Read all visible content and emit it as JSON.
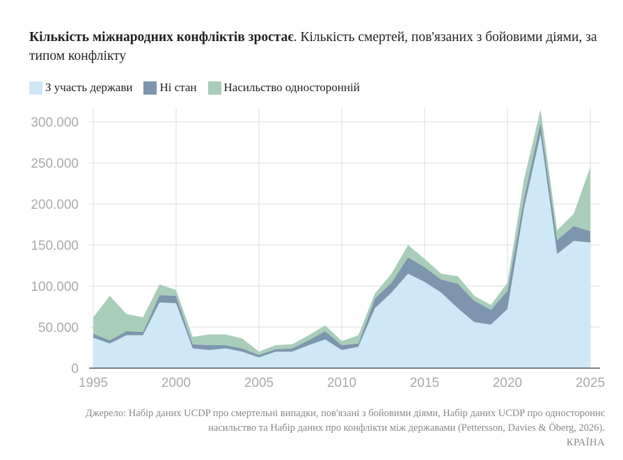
{
  "title": {
    "bold": "Кількість міжнародних конфліктів зростає",
    "rest": ". Кількість смертей, пов'язаних з бойовими діями, за типом конфлікту"
  },
  "source": "Джерело: Набір даних UCDP про смертельні випадки, пов'язані з бойовими діями, Набір даних UCDP про одностороннє насильство та Набір даних про конфлікти між державами (Pettersson, Davies & Öberg, 2026).",
  "brand": "КРАЇНА",
  "chart_data": {
    "type": "area",
    "stacked": true,
    "x": [
      1995,
      1996,
      1997,
      1998,
      1999,
      2000,
      2001,
      2002,
      2003,
      2004,
      2005,
      2006,
      2007,
      2008,
      2009,
      2010,
      2011,
      2012,
      2013,
      2014,
      2015,
      2016,
      2017,
      2018,
      2019,
      2020,
      2021,
      2022,
      2023,
      2024,
      2025
    ],
    "series": [
      {
        "name": "З участь держави",
        "color": "#cfe8f7",
        "values": [
          37000,
          30000,
          40000,
          40000,
          80000,
          79000,
          24000,
          22000,
          24000,
          20000,
          13000,
          20000,
          20000,
          28000,
          35000,
          22000,
          26000,
          73000,
          92000,
          115000,
          105000,
          92000,
          73000,
          56000,
          53000,
          72000,
          195000,
          285000,
          139000,
          155000,
          153000
        ]
      },
      {
        "name": "Ні стан",
        "color": "#7e96ad",
        "values": [
          5000,
          4000,
          5000,
          4000,
          9000,
          9000,
          5000,
          6000,
          4000,
          4000,
          3000,
          3000,
          4000,
          6000,
          10000,
          6000,
          4000,
          12000,
          12000,
          20000,
          18000,
          16000,
          30000,
          26000,
          18000,
          22000,
          12000,
          14000,
          17000,
          18000,
          14000
        ]
      },
      {
        "name": "Насильство односторонній",
        "color": "#a8ceb9",
        "values": [
          20000,
          54000,
          21000,
          18000,
          13000,
          7000,
          9000,
          13000,
          13000,
          12000,
          4000,
          5000,
          5000,
          6000,
          7000,
          5000,
          10000,
          6000,
          11000,
          15000,
          10000,
          7000,
          9000,
          6000,
          6000,
          10000,
          23000,
          16000,
          12000,
          15000,
          78000
        ]
      }
    ],
    "xlim": [
      1995,
      2025
    ],
    "ylim": [
      0,
      300000
    ],
    "x_ticks": [
      "1995",
      "2000",
      "2005",
      "2010",
      "2015",
      "2020",
      "2025"
    ],
    "x_tick_values": [
      1995,
      2000,
      2005,
      2010,
      2015,
      2020,
      2025
    ],
    "y_ticks": [
      "0",
      "50.000",
      "100.000",
      "150.000",
      "200.000",
      "250.000",
      "300.000"
    ],
    "y_tick_values": [
      0,
      50000,
      100000,
      150000,
      200000,
      250000,
      300000
    ],
    "grid": true,
    "legend_position": "top-left",
    "colors": {
      "grid": "#dddddd",
      "axis": "#555555",
      "tick_text": "#aaaaaa"
    }
  }
}
